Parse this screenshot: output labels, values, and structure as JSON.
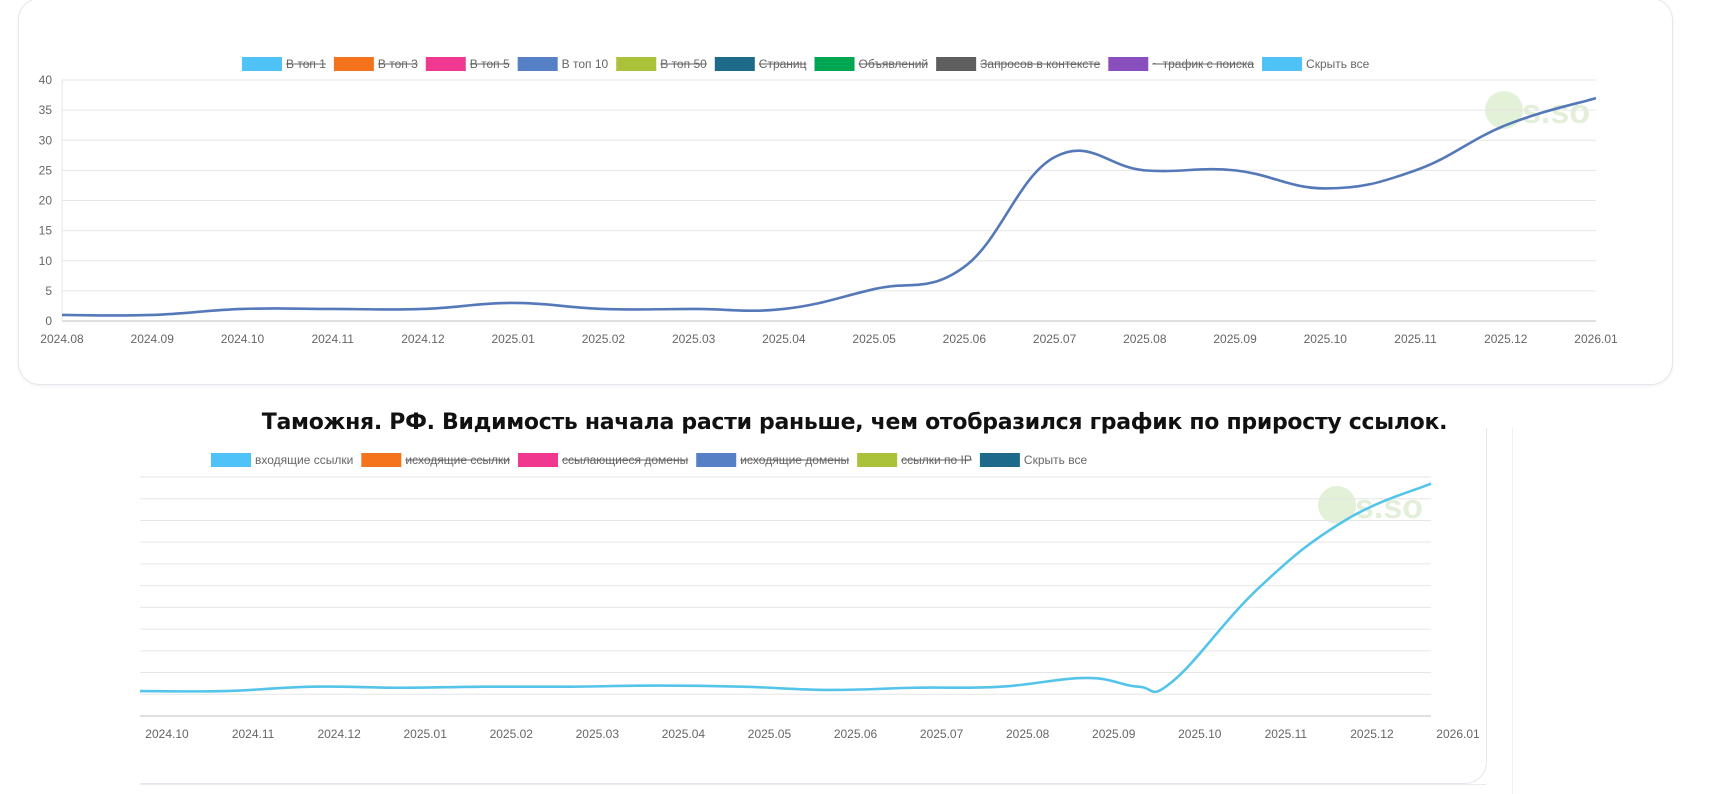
{
  "caption": "Таможня. РФ. Видимость начала расти раньше, чем отобразился график по приросту ссылок.",
  "chart_data": [
    {
      "type": "line",
      "legend": [
        {
          "label": "В топ 1",
          "color": "#4fc3f7",
          "hidden": true
        },
        {
          "label": "В топ 3",
          "color": "#f5731c",
          "hidden": true
        },
        {
          "label": "В топ 5",
          "color": "#f0388f",
          "hidden": true
        },
        {
          "label": "В топ 10",
          "color": "#5580c6",
          "hidden": false
        },
        {
          "label": "В топ 50",
          "color": "#a9c23a",
          "hidden": true
        },
        {
          "label": "Страниц",
          "color": "#1d6a8b",
          "hidden": true
        },
        {
          "label": "Объявлений",
          "color": "#00a651",
          "hidden": true
        },
        {
          "label": "Запросов в контексте",
          "color": "#5e5e5e",
          "hidden": true
        },
        {
          "label": "~ трафик с поиска",
          "color": "#8a4fbf",
          "hidden": true
        },
        {
          "label": "Скрыть все",
          "color": "#4fc3f7",
          "hidden": false
        }
      ],
      "categories": [
        "2024.08",
        "2024.09",
        "2024.10",
        "2024.11",
        "2024.12",
        "2025.01",
        "2025.02",
        "2025.03",
        "2025.04",
        "2025.05",
        "2025.06",
        "2025.07",
        "2025.08",
        "2025.09",
        "2025.10",
        "2025.11",
        "2025.12",
        "2026.01"
      ],
      "y_ticks": [
        "0",
        "5",
        "10",
        "15",
        "20",
        "25",
        "30",
        "35",
        "40"
      ],
      "ylim": [
        0,
        40
      ],
      "grid": true,
      "legend_position": "top",
      "series": [
        {
          "name": "В топ 10",
          "color": "#5578b9",
          "x": [
            0,
            1,
            2,
            3,
            4,
            5,
            6,
            7,
            8,
            9,
            10,
            11,
            12,
            13,
            14,
            15,
            16,
            17
          ],
          "values": [
            1,
            1,
            2,
            2,
            2,
            3,
            2,
            2,
            2,
            5.3,
            9,
            27.2,
            25,
            25,
            22,
            25,
            32.5,
            37
          ]
        }
      ]
    },
    {
      "type": "line",
      "legend": [
        {
          "label": "входящие ссылки",
          "color": "#4fc3f7",
          "hidden": false
        },
        {
          "label": "исходящие ссылки",
          "color": "#f5731c",
          "hidden": true
        },
        {
          "label": "ссылающиеся домены",
          "color": "#f0388f",
          "hidden": true
        },
        {
          "label": "исходящие домены",
          "color": "#5580c6",
          "hidden": true
        },
        {
          "label": "ссылки по IP",
          "color": "#a9c23a",
          "hidden": true
        },
        {
          "label": "Скрыть все",
          "color": "#1d6a8b",
          "hidden": false
        }
      ],
      "categories": [
        "2024.10",
        "2024.11",
        "2024.12",
        "2025.01",
        "2025.02",
        "2025.03",
        "2025.04",
        "2025.05",
        "2025.06",
        "2025.07",
        "2025.08",
        "2025.09",
        "2025.10",
        "2025.11",
        "2025.12",
        "2026.01"
      ],
      "ylim": [
        -1,
        10
      ],
      "grid": true,
      "legend_position": "top",
      "series": [
        {
          "name": "входящие ссылки",
          "color": "#55c4ea",
          "x": [
            0,
            1,
            2,
            3,
            4,
            5,
            6,
            7,
            8,
            9,
            10,
            11,
            11.6,
            12,
            13,
            14,
            15
          ],
          "values": [
            0.15,
            0.15,
            0.35,
            0.3,
            0.35,
            0.35,
            0.4,
            0.35,
            0.2,
            0.3,
            0.35,
            0.75,
            0.35,
            0.6,
            4.9,
            8,
            9.7
          ]
        }
      ]
    }
  ]
}
